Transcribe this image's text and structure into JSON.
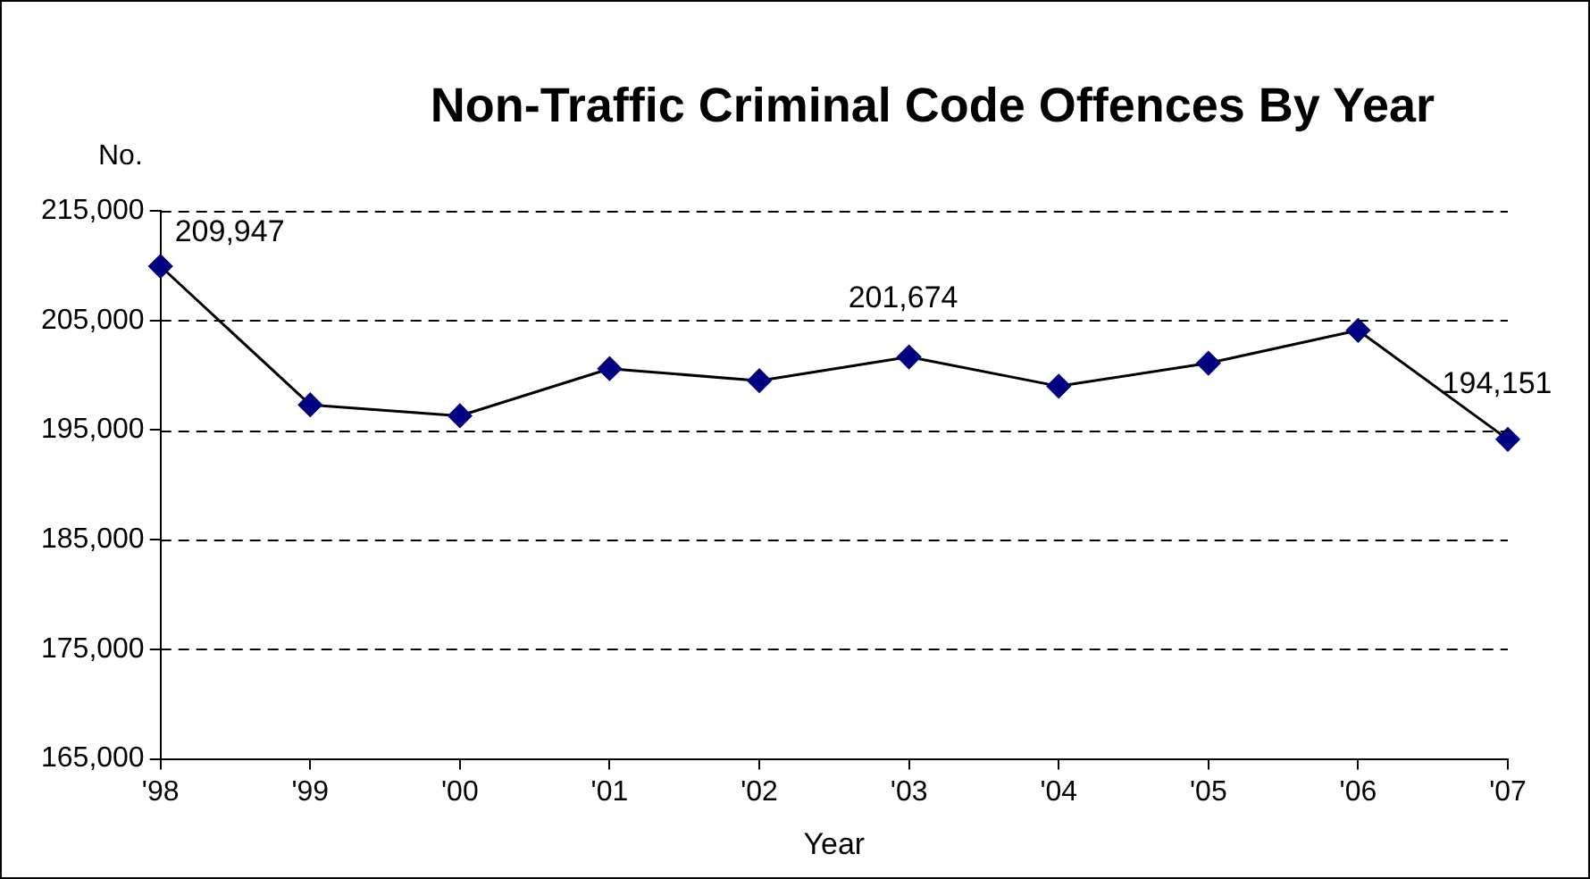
{
  "chart_data": {
    "type": "line",
    "title": "Non-Traffic Criminal Code Offences By Year",
    "ylabel": "No.",
    "xlabel": "Year",
    "categories": [
      "'98",
      "'99",
      "'00",
      "'01",
      "'02",
      "'03",
      "'04",
      "'05",
      "'06",
      "'07"
    ],
    "series": [
      {
        "color": "#000080",
        "values": [
          209947,
          197300,
          196300,
          200600,
          199500,
          201674,
          199000,
          201100,
          204100,
          194151
        ],
        "value_labels": [
          "209,947",
          null,
          null,
          null,
          null,
          "201,674",
          null,
          null,
          null,
          "194,151"
        ]
      }
    ],
    "ylim": [
      165000,
      215000
    ],
    "yticks": [
      {
        "value": 165000,
        "label": "165,000"
      },
      {
        "value": 175000,
        "label": "175,000"
      },
      {
        "value": 185000,
        "label": "185,000"
      },
      {
        "value": 195000,
        "label": "195,000"
      },
      {
        "value": 205000,
        "label": "205,000"
      },
      {
        "value": 215000,
        "label": "215,000"
      }
    ],
    "grid": "y",
    "legend": false,
    "marker": "diamond",
    "line_style": "solid"
  }
}
